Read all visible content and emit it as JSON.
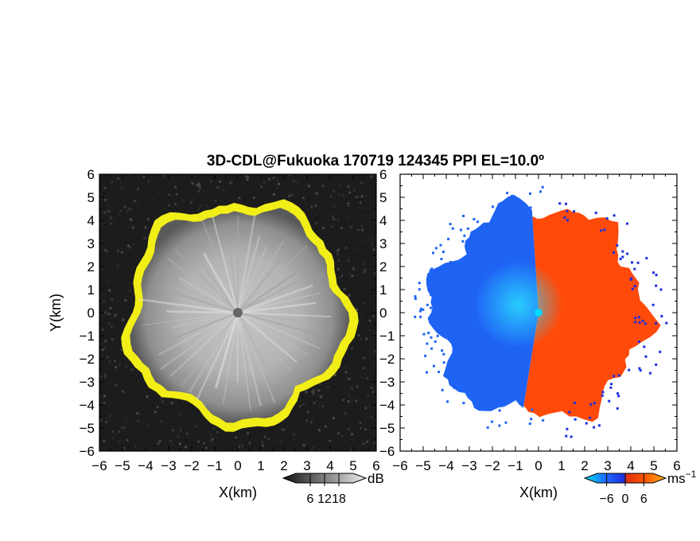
{
  "chart_data": [
    {
      "type": "heatmap",
      "panel": "reflectivity",
      "title": "3D-CDL@Fukuoka 170719 124345 PPI EL=10.0º",
      "xlabel": "X(km)",
      "ylabel": "Y(km)",
      "xlim": [
        -6,
        6
      ],
      "ylim": [
        -6,
        6
      ],
      "x_ticks": [
        "−6",
        "−5",
        "−4",
        "−3",
        "−2",
        "−1",
        "0",
        "1",
        "2",
        "3",
        "4",
        "5",
        "6"
      ],
      "y_ticks": [
        "6",
        "5",
        "4",
        "3",
        "2",
        "1",
        "0",
        "−1",
        "−2",
        "−3",
        "−4",
        "−5",
        "−6"
      ],
      "colorbar": {
        "unit": "dB",
        "ticks": [
          "6",
          "12",
          "18"
        ],
        "tick_values": [
          6,
          12,
          18
        ],
        "range": [
          0,
          24
        ],
        "colors": [
          "#111111",
          "#eeeeee"
        ]
      },
      "background_color": "#1c1c1c",
      "echo_radius_km": 4.6,
      "edge_color": "#f2ee18",
      "center_marker_color": "#666666"
    },
    {
      "type": "heatmap",
      "panel": "doppler-velocity",
      "xlabel": "X(km)",
      "xlim": [
        -6,
        6
      ],
      "ylim": [
        -6,
        6
      ],
      "x_ticks": [
        "−6",
        "−5",
        "−4",
        "−3",
        "−2",
        "−1",
        "0",
        "1",
        "2",
        "3",
        "4",
        "5",
        "6"
      ],
      "y_ticks": [
        "6",
        "5",
        "4",
        "3",
        "2",
        "1",
        "0",
        "−1",
        "−2",
        "−3",
        "−4",
        "−5",
        "−6"
      ],
      "colorbar": {
        "unit": "ms",
        "unit_exponent": "−1",
        "ticks": [
          "−6",
          "0",
          "6"
        ],
        "tick_values": [
          -6,
          0,
          6
        ],
        "range": [
          -9,
          9
        ],
        "colors": [
          "#00e0f0",
          "#1f6fff",
          "#1c2fe0",
          "#e03010",
          "#ff5a00",
          "#ffae20"
        ]
      },
      "background_color": "#ffffff",
      "echo_radius_km": 4.6,
      "negative_color": "#1f63f5",
      "positive_color": "#ff4a0a",
      "center_marker_color": "#00d8ff"
    }
  ]
}
